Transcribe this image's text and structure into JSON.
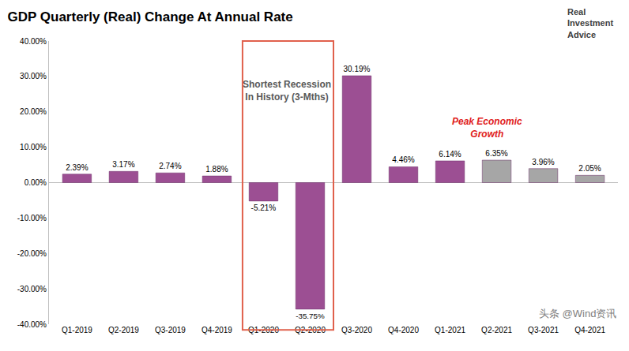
{
  "chart_data": {
    "type": "bar",
    "title": "GDP Quarterly (Real) Change At Annual Rate",
    "categories": [
      "Q1-2019",
      "Q2-2019",
      "Q3-2019",
      "Q4-2019",
      "Q1-2020",
      "Q2-2020",
      "Q3-2020",
      "Q4-2020",
      "Q1-2021",
      "Q2-2021",
      "Q3-2021",
      "Q4-2021"
    ],
    "values": [
      2.39,
      3.17,
      2.74,
      1.88,
      -5.21,
      -35.75,
      30.19,
      4.46,
      6.14,
      6.35,
      3.96,
      2.05
    ],
    "value_labels": [
      "2.39%",
      "3.17%",
      "2.74%",
      "1.88%",
      "-5.21%",
      "-35.75%",
      "30.19%",
      "4.46%",
      "6.14%",
      "6.35%",
      "3.96%",
      "2.05%"
    ],
    "colors": [
      "#9c4f93",
      "#9c4f93",
      "#9c4f93",
      "#9c4f93",
      "#9c4f93",
      "#9c4f93",
      "#9c4f93",
      "#9c4f93",
      "#9c4f93",
      "#a6a6a6",
      "#a6a6a6",
      "#a6a6a6"
    ],
    "data_labels": true,
    "grid": false,
    "ylim": [
      -40,
      40
    ],
    "yticks": [
      {
        "value": -40,
        "label": "-40.00%"
      },
      {
        "value": -30,
        "label": "-30.00%"
      },
      {
        "value": -20,
        "label": "-20.00%"
      },
      {
        "value": -10,
        "label": "-10.00%"
      },
      {
        "value": 0,
        "label": "0.00%"
      },
      {
        "value": 10,
        "label": "10.00%"
      },
      {
        "value": 20,
        "label": "20.00%"
      },
      {
        "value": 30,
        "label": "30.00%"
      },
      {
        "value": 40,
        "label": "40.00%"
      }
    ],
    "annotations": [
      {
        "text": "Shortest Recession\nIn History (3-Mths)",
        "color": "#595959"
      },
      {
        "text": "Peak Economic\nGrowth",
        "color": "#e02020"
      },
      {
        "text": "Real\nInvestment\nAdvice",
        "color": "#404040"
      },
      {
        "text": "头条 @Wind资讯",
        "color": "#808080"
      }
    ]
  }
}
